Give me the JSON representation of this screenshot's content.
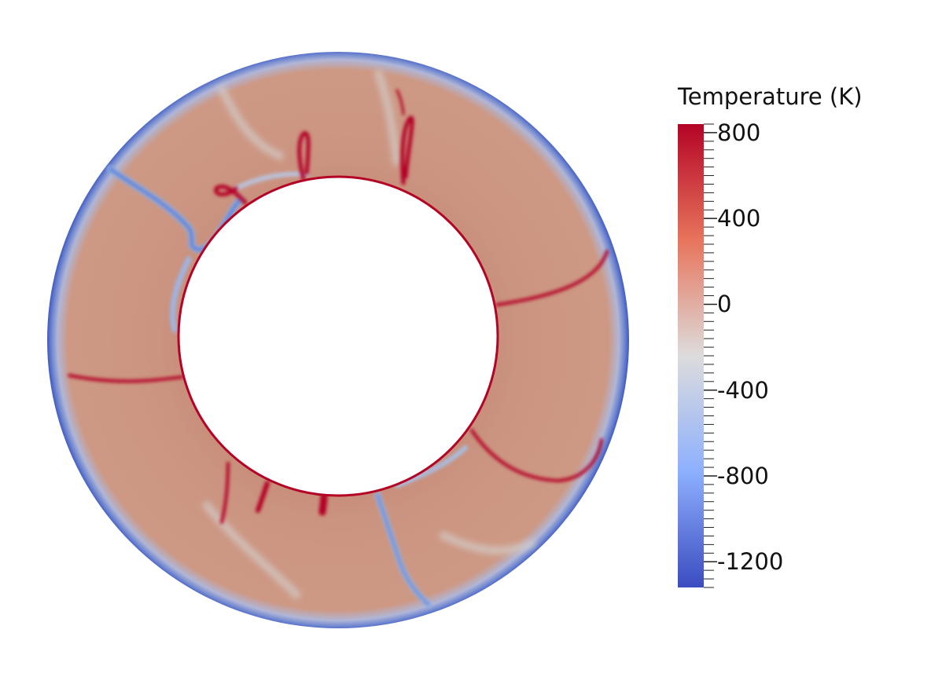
{
  "colorbar": {
    "title": "Temperature (K)",
    "min": -1320,
    "max": 840,
    "ticks": [
      {
        "value": 800,
        "label": "800"
      },
      {
        "value": 400,
        "label": "400"
      },
      {
        "value": 0,
        "label": "0"
      },
      {
        "value": -400,
        "label": "-400"
      },
      {
        "value": -800,
        "label": "-800"
      },
      {
        "value": -1200,
        "label": "-1200"
      }
    ],
    "colors": {
      "high": "#b40426",
      "mid": "#dddcdc",
      "low": "#3b4cc0"
    }
  },
  "field": {
    "background": "#c8907c",
    "cold_boundary": "#3f58c2",
    "hot_boundary": "#b40426"
  }
}
